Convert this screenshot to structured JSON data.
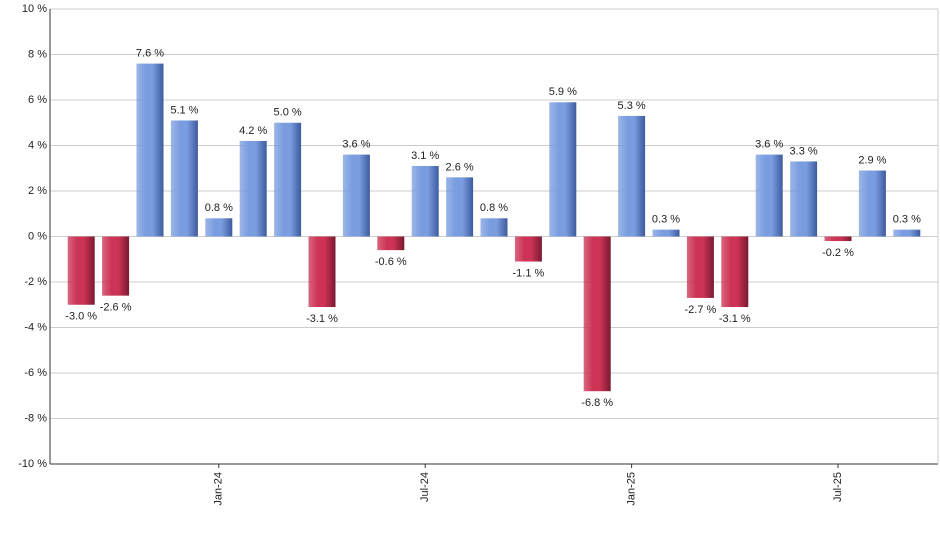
{
  "chart_data": {
    "type": "bar",
    "categories": [
      null,
      null,
      null,
      null,
      "Jan-24",
      null,
      null,
      null,
      null,
      null,
      "Jul-24",
      null,
      null,
      null,
      null,
      null,
      "Jan-25",
      null,
      null,
      null,
      null,
      null,
      "Jul-25",
      null,
      null
    ],
    "values": [
      -3.0,
      -2.6,
      7.6,
      5.1,
      0.8,
      4.2,
      5.0,
      -3.1,
      3.6,
      -0.6,
      3.1,
      2.6,
      0.8,
      -1.1,
      5.9,
      -6.8,
      5.3,
      0.3,
      -2.7,
      -3.1,
      3.6,
      3.3,
      -0.2,
      2.9,
      0.3
    ],
    "value_labels": [
      "-3.0 %",
      "-2.6 %",
      "7.6 %",
      "5.1 %",
      "0.8 %",
      "4.2 %",
      "5.0 %",
      "-3.1 %",
      "3.6 %",
      "-0.6 %",
      "3.1 %",
      "2.6 %",
      "0.8 %",
      "-1.1 %",
      "5.9 %",
      "-6.8 %",
      "5.3 %",
      "0.3 %",
      "-2.7 %",
      "-3.1 %",
      "3.6 %",
      "3.3 %",
      "-0.2 %",
      "2.9 %",
      "0.3 %"
    ],
    "positive_color": "#7a9de0",
    "negative_color": "#cc3355",
    "ylim": [
      -10,
      10
    ],
    "yticks": [
      {
        "value": -10,
        "label": "-10 %"
      },
      {
        "value": -8,
        "label": "-8 %"
      },
      {
        "value": -6,
        "label": "-6 %"
      },
      {
        "value": -4,
        "label": "-4 %"
      },
      {
        "value": -2,
        "label": "-2 %"
      },
      {
        "value": 0,
        "label": "0 %"
      },
      {
        "value": 2,
        "label": "2 %"
      },
      {
        "value": 4,
        "label": "4 %"
      },
      {
        "value": 6,
        "label": "6 %"
      },
      {
        "value": 8,
        "label": "8 %"
      },
      {
        "value": 10,
        "label": "10 %"
      }
    ],
    "grid": true
  }
}
